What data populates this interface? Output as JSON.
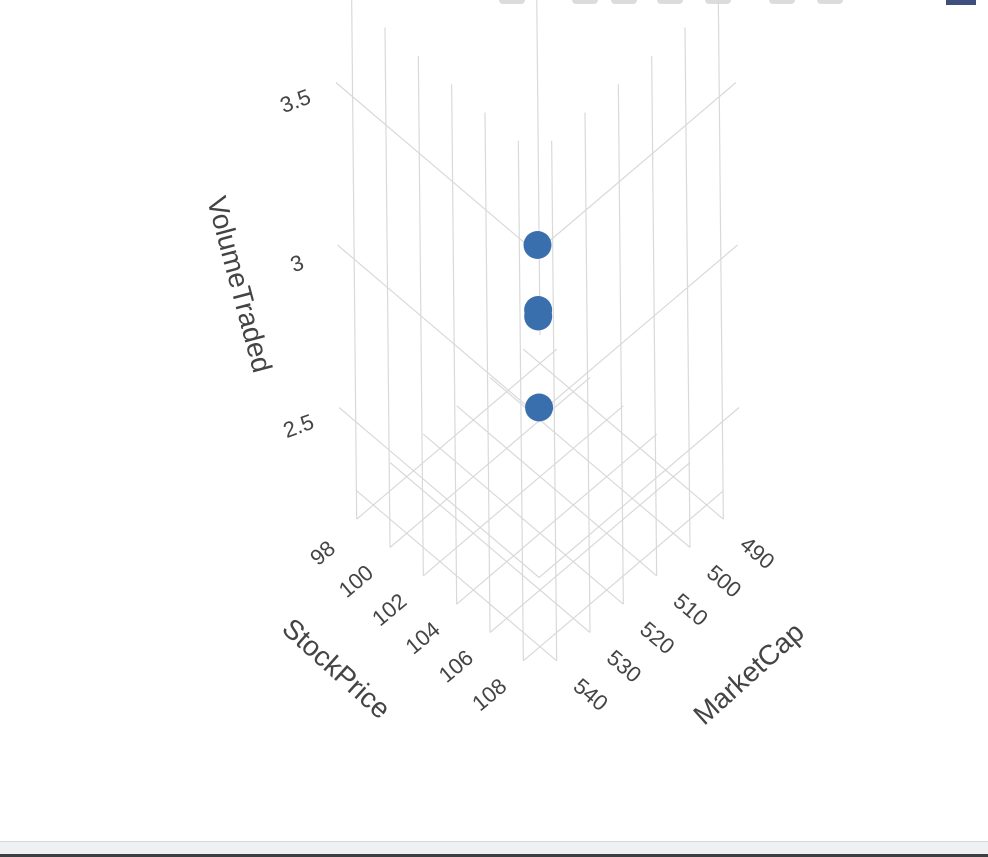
{
  "colors": {
    "marker": "#3a6fae",
    "grid": "#d9d9d9",
    "text": "#444444",
    "modebar_icon": "#dcdcdc",
    "modebar_logo": "#3f4f7d"
  },
  "modebar": {
    "icons": [
      "camera-icon",
      "zoom-icon",
      "pan-icon",
      "orbit-icon",
      "turntable-icon",
      "reset-icon",
      "hover-icon",
      "plotly-logo-icon"
    ]
  },
  "chart_data": {
    "type": "scatter3d",
    "title": "",
    "axes": {
      "x": {
        "label": "MarketCap",
        "range": [
          485,
          545
        ],
        "ticks": [
          490,
          500,
          510,
          520,
          530,
          540
        ],
        "tick_labels": [
          "490",
          "500",
          "510",
          "520",
          "530",
          "540"
        ]
      },
      "y": {
        "label": "StockPrice",
        "range": [
          97,
          109
        ],
        "ticks": [
          98,
          100,
          102,
          104,
          106,
          108
        ],
        "tick_labels": [
          "98",
          "100",
          "102",
          "104",
          "106",
          "108"
        ]
      },
      "z": {
        "label": "VolumeTraded",
        "range": [
          2.2,
          3.8
        ],
        "ticks": [
          2.5,
          3,
          3.5
        ],
        "tick_labels": [
          "2.5",
          "3",
          "3.5"
        ]
      }
    },
    "grid": true,
    "legend": "none",
    "series": [
      {
        "points": [
          {
            "x": 515,
            "y": 103,
            "z": 3.0
          },
          {
            "x": 515,
            "y": 103,
            "z": 2.8
          },
          {
            "x": 515,
            "y": 103,
            "z": 2.78
          },
          {
            "x": 515,
            "y": 103,
            "z": 2.5
          }
        ]
      }
    ]
  }
}
